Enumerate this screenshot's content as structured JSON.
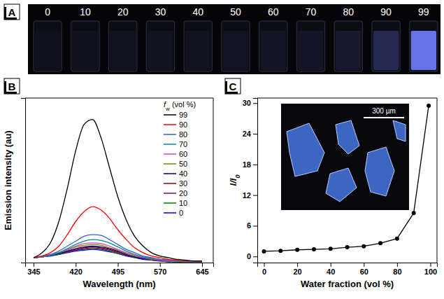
{
  "chart_data": [
    {
      "type": "image",
      "title": "A",
      "categories": [
        "0",
        "10",
        "20",
        "30",
        "40",
        "50",
        "60",
        "70",
        "80",
        "90",
        "99"
      ]
    },
    {
      "type": "line",
      "title": "B",
      "xlabel": "Wavelength (nm)",
      "ylabel": "Emission intensity (au)",
      "legend_title": "fw (vol %)",
      "x": [
        345,
        360,
        375,
        390,
        405,
        420,
        435,
        450,
        465,
        480,
        495,
        510,
        525,
        540,
        555,
        570,
        585,
        600,
        615,
        630,
        645
      ],
      "xlim": [
        330,
        665
      ],
      "ylim": [
        0,
        100
      ],
      "xticks": [
        345,
        420,
        495,
        570,
        645
      ],
      "tick_labels": "x",
      "legend": "top-right",
      "series": [
        {
          "name": "99",
          "color": "#000000",
          "values": [
            3,
            6,
            12,
            25,
            45,
            68,
            84,
            87,
            76,
            58,
            40,
            26,
            16,
            10,
            6,
            4,
            3,
            2,
            1.5,
            1,
            1
          ]
        },
        {
          "name": "90",
          "color": "#ff0000",
          "values": [
            3,
            4,
            6,
            10,
            17,
            25,
            31,
            34,
            32,
            27,
            20,
            14,
            9,
            6,
            4,
            3,
            2,
            1.5,
            1,
            1,
            0.5
          ]
        },
        {
          "name": "80",
          "color": "#3a5fcd",
          "values": [
            3,
            4,
            5,
            7,
            10,
            13,
            16,
            17,
            16.5,
            14,
            11,
            8,
            6,
            4,
            3,
            2,
            1.5,
            1,
            1,
            0.5,
            0.5
          ]
        },
        {
          "name": "70",
          "color": "#008b8b",
          "values": [
            3,
            3.5,
            4.5,
            6,
            8.5,
            11,
            13,
            14,
            13.5,
            12,
            9.5,
            7,
            5,
            3.5,
            2.5,
            2,
            1.5,
            1,
            0.5,
            0.5,
            0.5
          ]
        },
        {
          "name": "60",
          "color": "#cc44cc",
          "values": [
            3,
            3.5,
            4.5,
            6,
            8,
            10,
            11.5,
            12,
            11.5,
            10,
            8,
            6,
            4.5,
            3,
            2.5,
            1.5,
            1,
            1,
            0.5,
            0.5,
            0.5
          ]
        },
        {
          "name": "50",
          "color": "#808000",
          "values": [
            3,
            3.5,
            4.5,
            6,
            7.5,
            9.5,
            10.5,
            11,
            10.5,
            9,
            7.5,
            5.5,
            4,
            3,
            2,
            1.5,
            1,
            0.5,
            0.5,
            0.5,
            0.5
          ]
        },
        {
          "name": "40",
          "color": "#000080",
          "values": [
            3,
            3.5,
            4.5,
            5.5,
            7,
            8.5,
            9.5,
            10,
            9.5,
            8.5,
            7,
            5,
            3.5,
            2.5,
            2,
            1.5,
            1,
            0.5,
            0.5,
            0.5,
            0.5
          ]
        },
        {
          "name": "30",
          "color": "#990000",
          "values": [
            3,
            3.5,
            4.5,
            5.5,
            7,
            8,
            9,
            9.5,
            9,
            8,
            6.5,
            5,
            3.5,
            2.5,
            2,
            1.5,
            1,
            0.5,
            0.5,
            0.5,
            0.5
          ]
        },
        {
          "name": "20",
          "color": "#800080",
          "values": [
            3,
            3.5,
            4.5,
            5.5,
            6.5,
            7.5,
            8.5,
            9,
            8.5,
            7.5,
            6,
            4.5,
            3.5,
            2.5,
            1.5,
            1,
            1,
            0.5,
            0.5,
            0.5,
            0.5
          ]
        },
        {
          "name": "10",
          "color": "#008000",
          "values": [
            3,
            3.5,
            4.5,
            5,
            6.5,
            7.5,
            8,
            8.5,
            8,
            7,
            5.5,
            4.5,
            3,
            2.5,
            1.5,
            1,
            0.5,
            0.5,
            0.5,
            0.5,
            0.5
          ]
        },
        {
          "name": "0",
          "color": "#0000ff",
          "values": [
            3,
            3.5,
            4,
            5,
            6,
            7,
            7.5,
            8,
            7.5,
            6.5,
            5.5,
            4,
            3,
            2,
            1.5,
            1,
            0.5,
            0.5,
            0.5,
            0.5,
            0.5
          ]
        }
      ]
    },
    {
      "type": "line",
      "title": "C",
      "xlabel": "Water fraction (vol %)",
      "ylabel": "I/I0",
      "x": [
        0,
        10,
        20,
        30,
        40,
        50,
        60,
        70,
        80,
        90,
        99
      ],
      "values": [
        1.0,
        1.1,
        1.3,
        1.4,
        1.5,
        1.8,
        2.0,
        2.6,
        3.5,
        8.5,
        29.5
      ],
      "xlim": [
        -4,
        104
      ],
      "ylim": [
        -1.2,
        31
      ],
      "xticks": [
        0,
        20,
        40,
        60,
        80,
        100
      ],
      "yticks": [
        0,
        6,
        12,
        18,
        24,
        30
      ],
      "color": "#000000",
      "marker": "circle",
      "annotations": [
        "300 µm"
      ]
    }
  ]
}
